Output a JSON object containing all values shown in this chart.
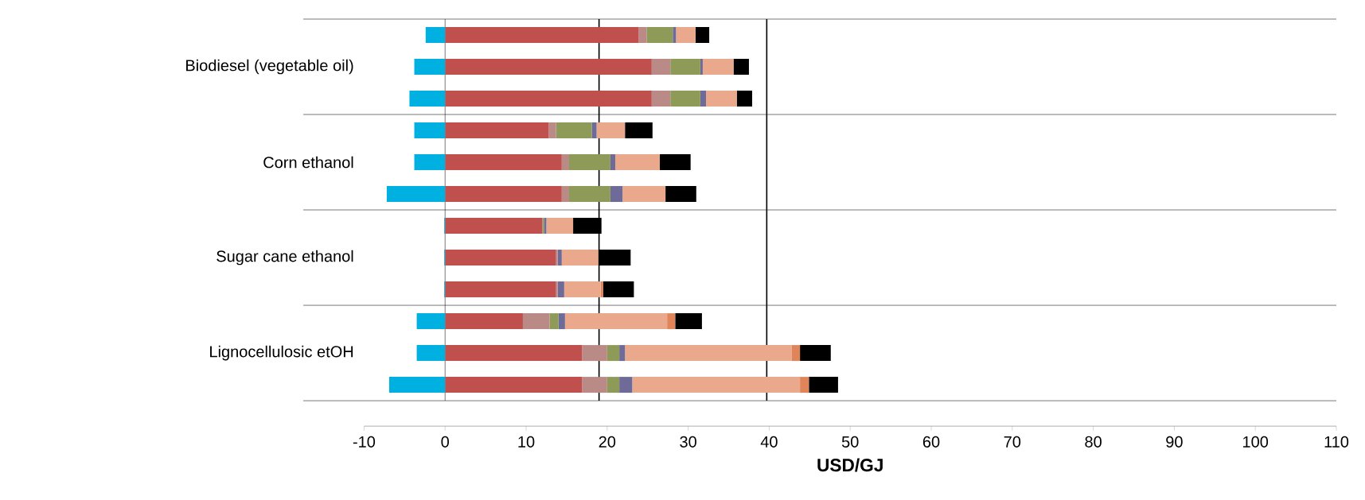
{
  "chart_data": {
    "type": "bar",
    "orientation": "horizontal",
    "stacked": true,
    "xlabel": "USD/GJ",
    "categories": [
      null,
      "Biodiesel (vegetable oil)",
      null,
      null,
      "Corn ethanol",
      null,
      null,
      "Sugar cane ethanol",
      null,
      null,
      "Lignocellulosic etOH",
      null
    ],
    "series": [
      {
        "color": "#00b0e0",
        "values": [
          -2.4,
          -3.8,
          -4.4,
          -3.8,
          -3.8,
          -7.2,
          -0.1,
          -0.1,
          -0.1,
          -3.5,
          -3.5,
          -6.9
        ]
      },
      {
        "color": "#c0504d",
        "values": [
          23.9,
          25.5,
          25.5,
          12.8,
          14.4,
          14.4,
          12.0,
          13.7,
          13.7,
          9.6,
          16.9,
          16.9
        ]
      },
      {
        "color": "#b98a86",
        "values": [
          1.0,
          2.3,
          2.3,
          0.9,
          0.9,
          0.9,
          0,
          0.2,
          0.2,
          3.3,
          3.1,
          3.1
        ]
      },
      {
        "color": "#8e9b58",
        "values": [
          3.2,
          3.7,
          3.7,
          4.4,
          5.1,
          5.1,
          0.2,
          0,
          0,
          1.1,
          1.5,
          1.5
        ]
      },
      {
        "color": "#6f6b99",
        "values": [
          0.4,
          0.3,
          0.7,
          0.6,
          0.6,
          1.5,
          0.3,
          0.5,
          0.8,
          0.8,
          0.7,
          1.6
        ]
      },
      {
        "color": "#eaa98c",
        "values": [
          2.4,
          3.8,
          3.8,
          3.5,
          5.5,
          5.3,
          3.3,
          4.5,
          4.5,
          12.6,
          20.6,
          20.7
        ]
      },
      {
        "color": "#e0855a",
        "values": [
          0,
          0,
          0,
          0,
          0,
          0,
          0,
          0,
          0.3,
          1.0,
          1.0,
          1.1
        ]
      },
      {
        "color": "#000000",
        "values": [
          1.7,
          1.9,
          1.9,
          3.4,
          3.8,
          3.8,
          3.5,
          4.0,
          3.8,
          3.3,
          3.8,
          3.6
        ]
      }
    ],
    "xlim": [
      -10,
      110
    ],
    "xticks": [
      -10,
      0,
      10,
      20,
      30,
      40,
      50,
      60,
      70,
      80,
      90,
      100,
      110
    ],
    "ref_lines": [
      {
        "axis": "x",
        "value": 19,
        "color": "#000000"
      },
      {
        "axis": "x",
        "value": 39.7,
        "color": "#000000"
      }
    ]
  }
}
